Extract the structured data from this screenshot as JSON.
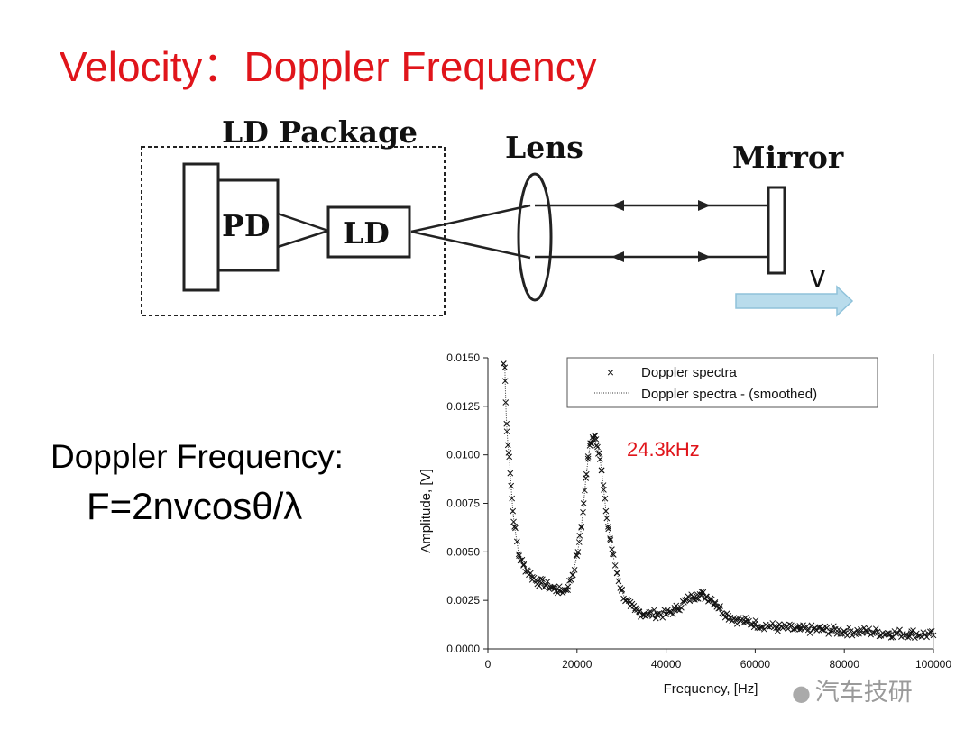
{
  "title": "Velocity：Doppler Frequency",
  "diagram": {
    "package_label": "LD Package",
    "pd_label": "PD",
    "ld_label": "LD",
    "lens_label": "Lens",
    "mirror_label": "Mirror",
    "velocity_label": "v",
    "arrow_color": "#b9dcec"
  },
  "formula": {
    "heading": "Doppler Frequency:",
    "equation": "F=2nvcosθ/λ"
  },
  "chart_data": {
    "type": "scatter",
    "xlabel": "Frequency, [Hz]",
    "ylabel": "Amplitude, [V]",
    "xlim": [
      0,
      100000
    ],
    "ylim": [
      0,
      0.015
    ],
    "x_ticks": [
      "0",
      "20000",
      "40000",
      "60000",
      "80000",
      "100000"
    ],
    "y_ticks": [
      "0.0000",
      "0.0025",
      "0.0050",
      "0.0075",
      "0.0100",
      "0.0125",
      "0.0150"
    ],
    "legend": [
      "Doppler spectra",
      "Doppler spectra - (smoothed)"
    ],
    "legend_position": "top-right",
    "annotation": "24.3kHz",
    "annotation_color": "#e0151b",
    "series": [
      {
        "name": "Doppler spectra",
        "marker": "x",
        "x": [
          3500,
          3800,
          4000,
          4200,
          4500,
          4800,
          5200,
          5600,
          6000,
          7000,
          8000,
          9000,
          10000,
          11000,
          12000,
          13000,
          14000,
          15000,
          16000,
          17000,
          18000,
          19000,
          20000,
          20500,
          21000,
          21500,
          22000,
          22500,
          23000,
          23500,
          24000,
          24300,
          24600,
          25000,
          25500,
          26000,
          26500,
          27000,
          27500,
          28000,
          29000,
          30000,
          31000,
          32000,
          33000,
          34000,
          35000,
          36000,
          38000,
          40000,
          42000,
          44000,
          46000,
          47000,
          48000,
          49000,
          50000,
          51000,
          52000,
          54000,
          56000,
          58000,
          60000,
          65000,
          70000,
          75000,
          80000,
          85000,
          90000,
          95000,
          100000
        ],
        "y": [
          0.0147,
          0.0145,
          0.0127,
          0.0116,
          0.0105,
          0.0099,
          0.0084,
          0.0071,
          0.0063,
          0.0048,
          0.0043,
          0.004,
          0.0037,
          0.0035,
          0.0034,
          0.0033,
          0.0032,
          0.0031,
          0.003,
          0.003,
          0.0032,
          0.0038,
          0.0048,
          0.0055,
          0.0063,
          0.0075,
          0.0088,
          0.0098,
          0.0106,
          0.0109,
          0.011,
          0.0108,
          0.0104,
          0.0101,
          0.0092,
          0.0082,
          0.0071,
          0.0063,
          0.0056,
          0.0049,
          0.0039,
          0.003,
          0.0025,
          0.0022,
          0.002,
          0.0019,
          0.0018,
          0.0018,
          0.0018,
          0.0018,
          0.002,
          0.0024,
          0.0027,
          0.0028,
          0.0028,
          0.0027,
          0.0026,
          0.0024,
          0.0021,
          0.0017,
          0.0015,
          0.0014,
          0.0013,
          0.0011,
          0.001,
          0.001,
          0.0009,
          0.0009,
          0.0008,
          0.0008,
          0.0007
        ]
      }
    ]
  },
  "watermark": "汽车技研"
}
